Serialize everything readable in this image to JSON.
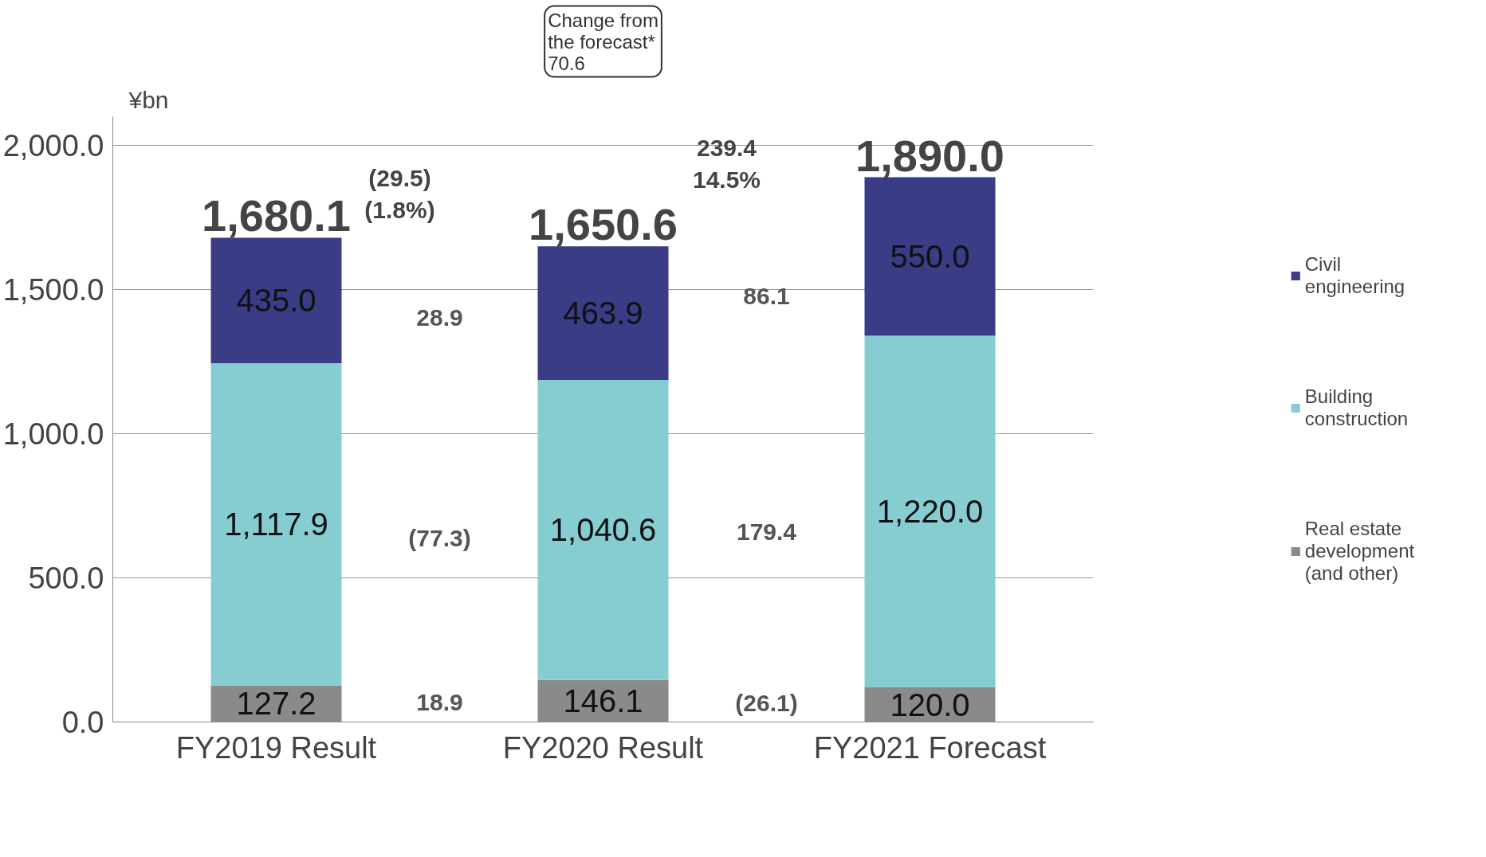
{
  "chart_data": {
    "type": "bar",
    "stacked": true,
    "ylabel": "¥bn",
    "categories": [
      "FY2019 Result",
      "FY2020 Result",
      "FY2021 Forecast"
    ],
    "series": [
      {
        "name": "Real estate development (and other)",
        "color": "#8a8a8a",
        "values": [
          127.2,
          146.1,
          120.0
        ],
        "value_labels": [
          "127.2",
          "146.1",
          "120.0"
        ]
      },
      {
        "name": "Building construction",
        "color": "#86cdd2",
        "values": [
          1117.9,
          1040.6,
          1220.0
        ],
        "value_labels": [
          "1,117.9",
          "1,040.6",
          "1,220.0"
        ]
      },
      {
        "name": "Civil engineering",
        "color": "#3a3c86",
        "values": [
          435.0,
          463.9,
          550.0
        ],
        "value_labels": [
          "435.0",
          "463.9",
          "550.0"
        ]
      }
    ],
    "totals": [
      "1,680.1",
      "1,650.6",
      "1,890.0"
    ],
    "annotations": [
      "Change from\nthe forecast*\n70.6",
      "(29.5)\n(1.8%)",
      "239.4\n14.5%",
      "28.9",
      "86.1",
      "(77.3)",
      "179.4",
      "18.9",
      "(26.1)"
    ],
    "ylim": [
      0,
      2100
    ],
    "yticks": [
      {
        "value": 0,
        "label": "0.0"
      },
      {
        "value": 500,
        "label": "500.0"
      },
      {
        "value": 1000,
        "label": "1,000.0"
      },
      {
        "value": 1500,
        "label": "1,500.0"
      },
      {
        "value": 2000,
        "label": "2,000.0"
      }
    ],
    "grid": "y",
    "legend": "right"
  }
}
